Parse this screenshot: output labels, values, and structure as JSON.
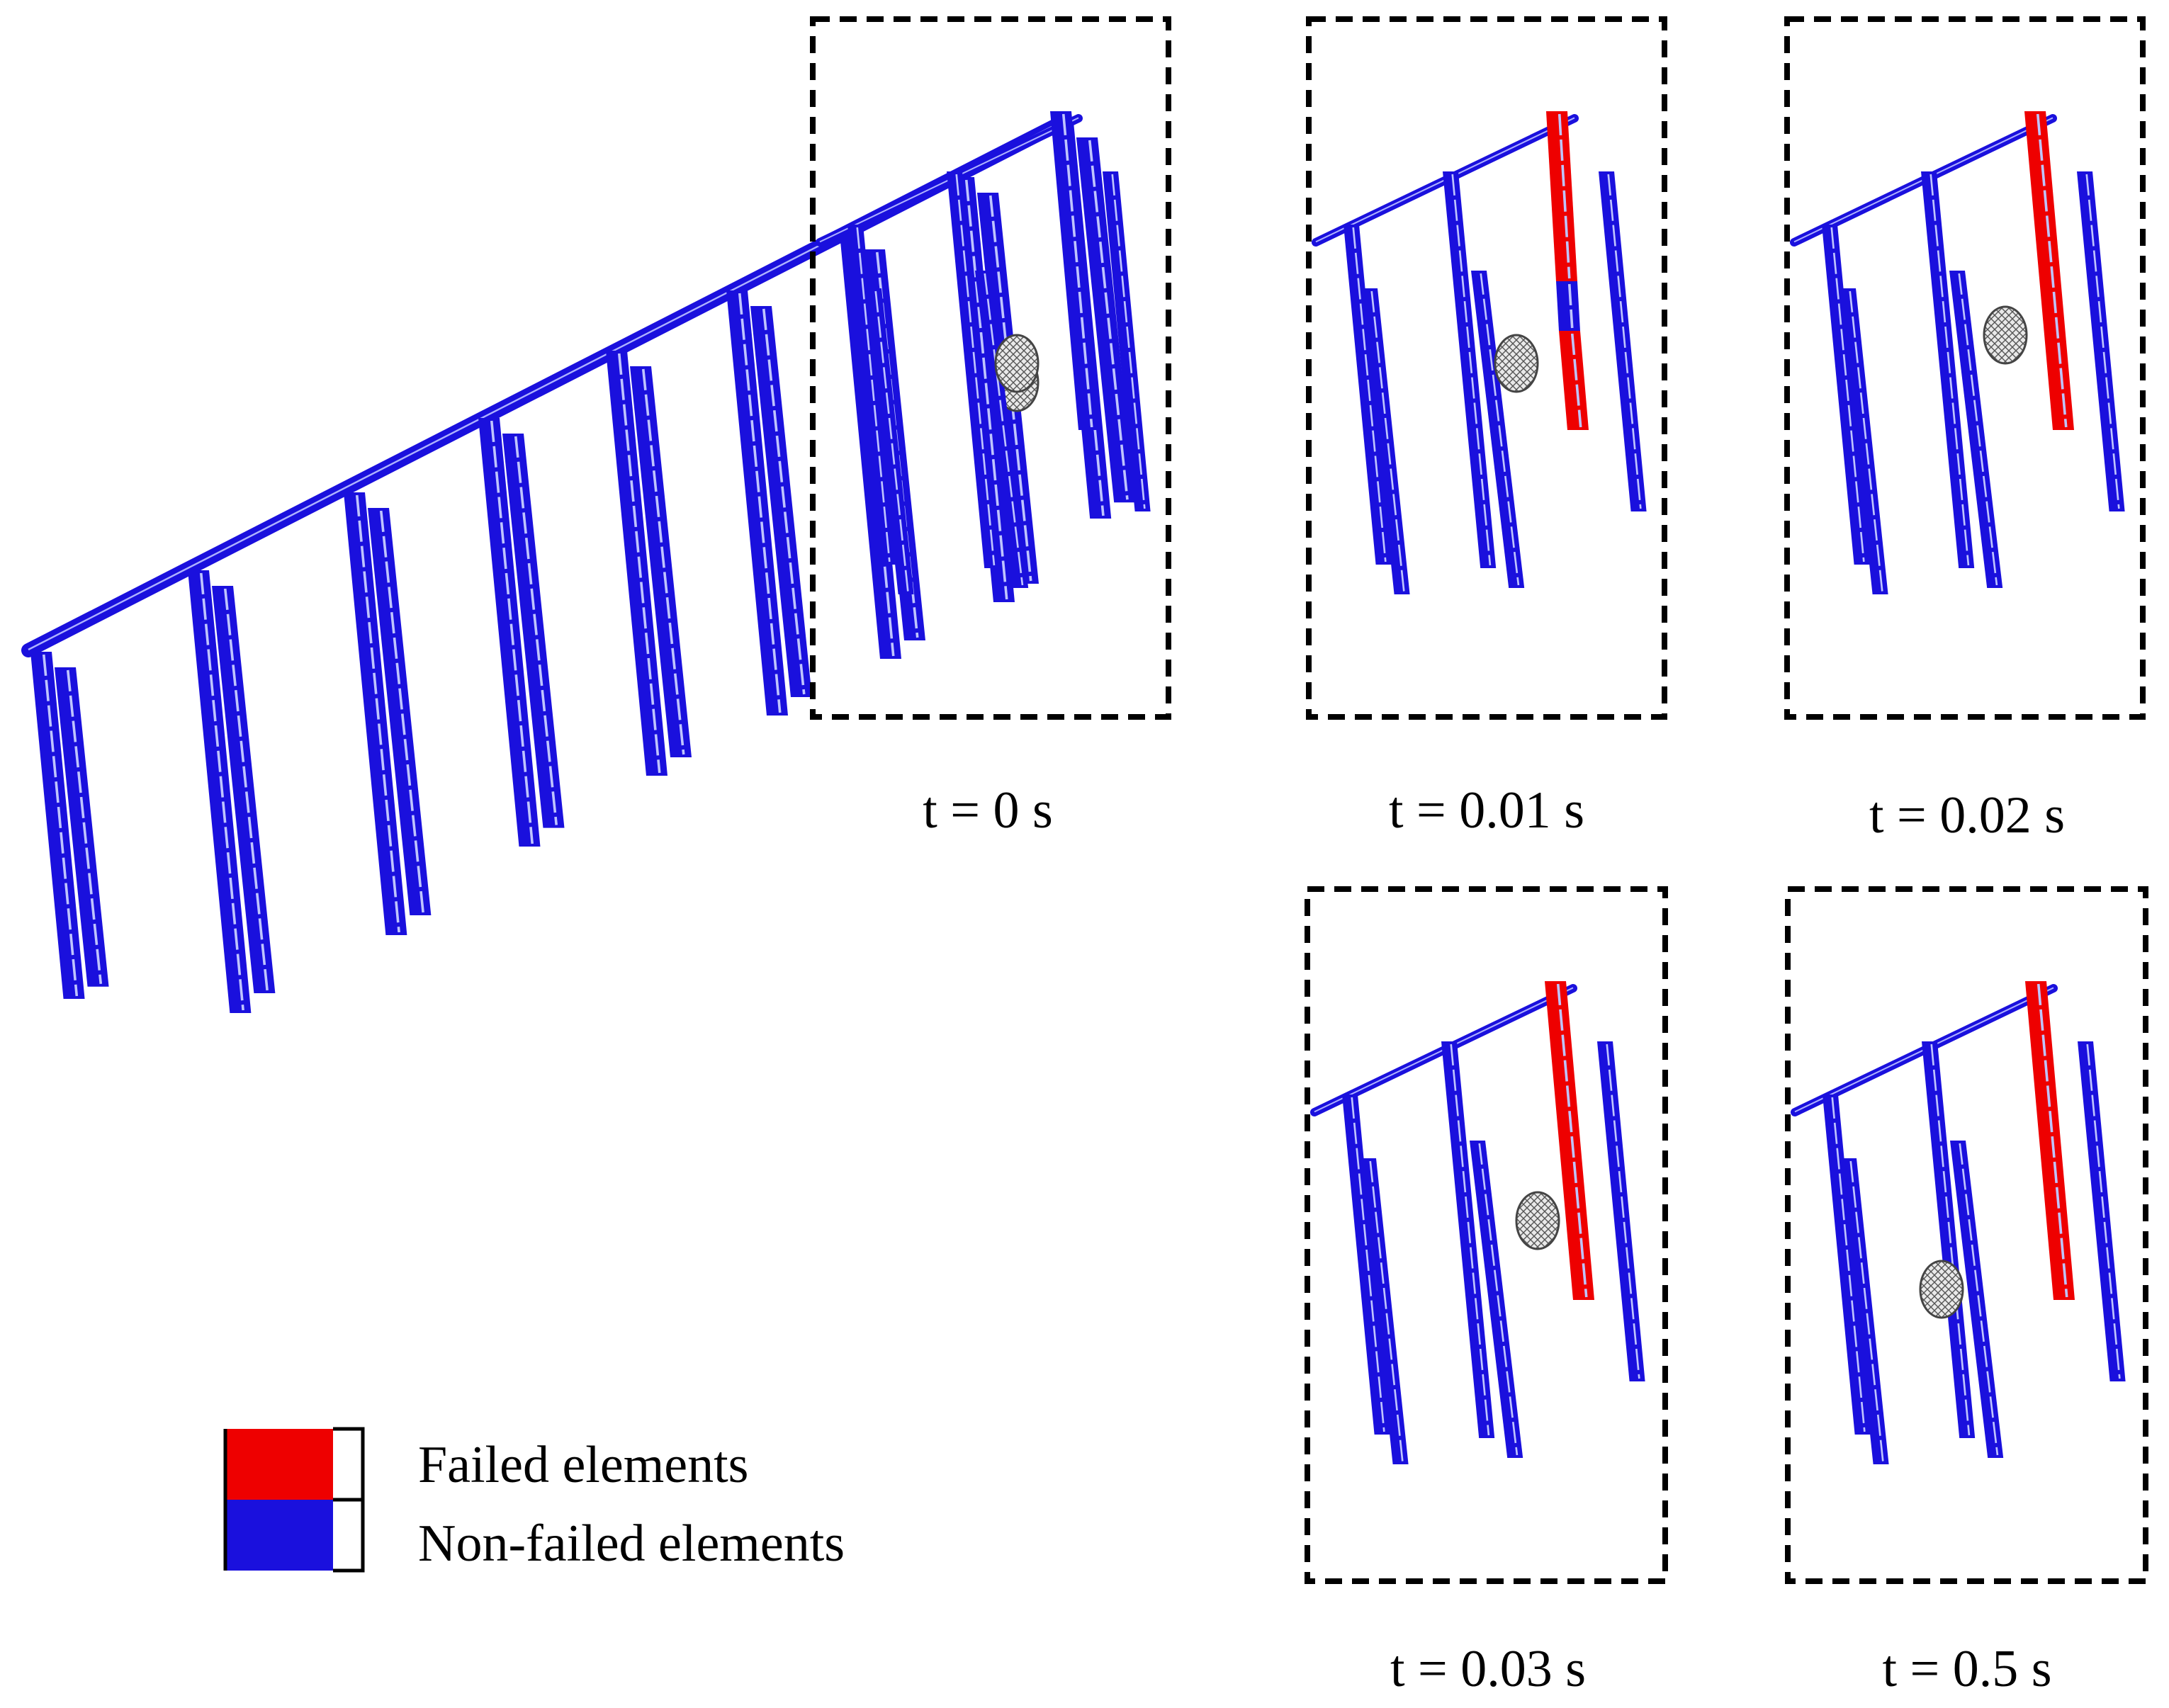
{
  "colors": {
    "failed": "#ee0000",
    "non_failed": "#1a10dd",
    "impactor": "#9a9a9a",
    "frame": "#000000"
  },
  "legend": {
    "failed_label": "Failed elements",
    "non_failed_label": "Non-failed elements"
  },
  "main_view": {
    "post_count": 9
  },
  "snapshots": [
    {
      "id": "t0",
      "time_label": "t = 0 s",
      "failed": false,
      "impactor": "front"
    },
    {
      "id": "t001",
      "time_label": "t = 0.01 s",
      "failed": "partial",
      "impactor": "front"
    },
    {
      "id": "t002",
      "time_label": "t = 0.02 s",
      "failed": true,
      "impactor": "front"
    },
    {
      "id": "t003",
      "time_label": "t = 0.03 s",
      "failed": true,
      "impactor": "front"
    },
    {
      "id": "t05",
      "time_label": "t = 0.5 s",
      "failed": true,
      "impactor": "displaced"
    }
  ]
}
